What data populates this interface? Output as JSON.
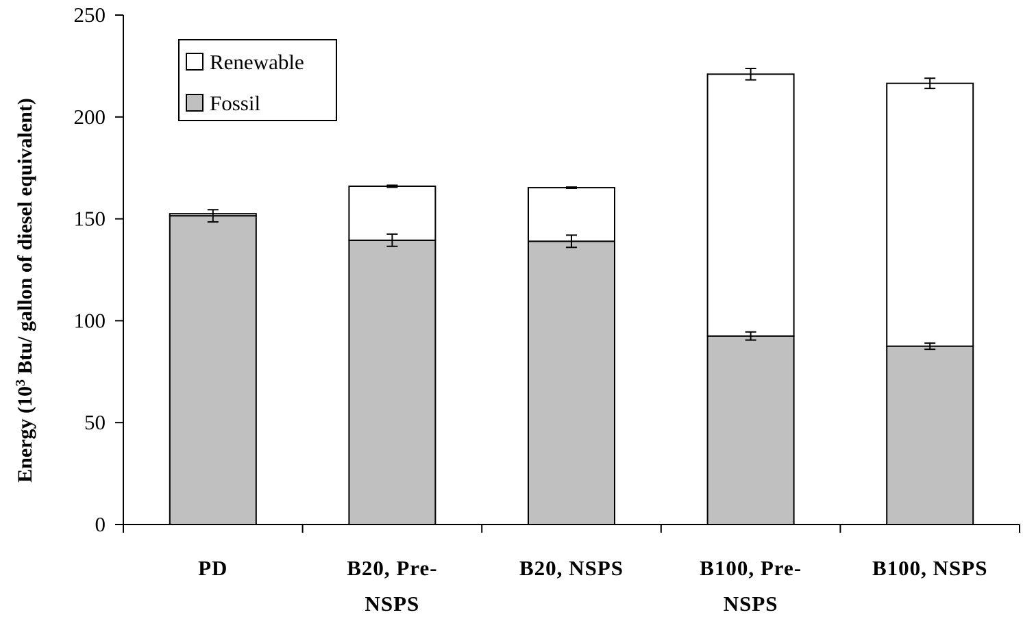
{
  "chart_data": {
    "type": "bar",
    "stacked": true,
    "categories": [
      "PD",
      "B20, Pre-NSPS",
      "B20, NSPS",
      "B100, Pre-NSPS",
      "B100, NSPS"
    ],
    "category_label_lines": [
      [
        "PD"
      ],
      [
        "B20, Pre-",
        "NSPS"
      ],
      [
        "B20, NSPS"
      ],
      [
        "B100, Pre-",
        "NSPS"
      ],
      [
        "B100, NSPS"
      ]
    ],
    "series": [
      {
        "name": "Fossil",
        "color": "#c0c0c0",
        "values": [
          151.5,
          139.5,
          139,
          92.5,
          87.5
        ],
        "errors": [
          3,
          3,
          3,
          2,
          1.5
        ]
      },
      {
        "name": "Renewable",
        "color": "#ffffff",
        "values": [
          1,
          26.5,
          26.3,
          128.5,
          129
        ],
        "errors": [
          0,
          0.5,
          0.3,
          2.8,
          2.5
        ]
      }
    ],
    "ylabel_parts": [
      "Energy (10",
      "3",
      " Btu/ gallon of diesel equivalent)"
    ],
    "ylim": [
      0,
      250
    ],
    "yticks": [
      "0",
      "50",
      "100",
      "150",
      "200",
      "250"
    ],
    "ytick_values": [
      0,
      50,
      100,
      150,
      200,
      250
    ],
    "grid": false,
    "legend_position": "top-left",
    "legend": [
      {
        "name": "Renewable",
        "color": "#ffffff"
      },
      {
        "name": "Fossil",
        "color": "#c0c0c0"
      }
    ]
  }
}
